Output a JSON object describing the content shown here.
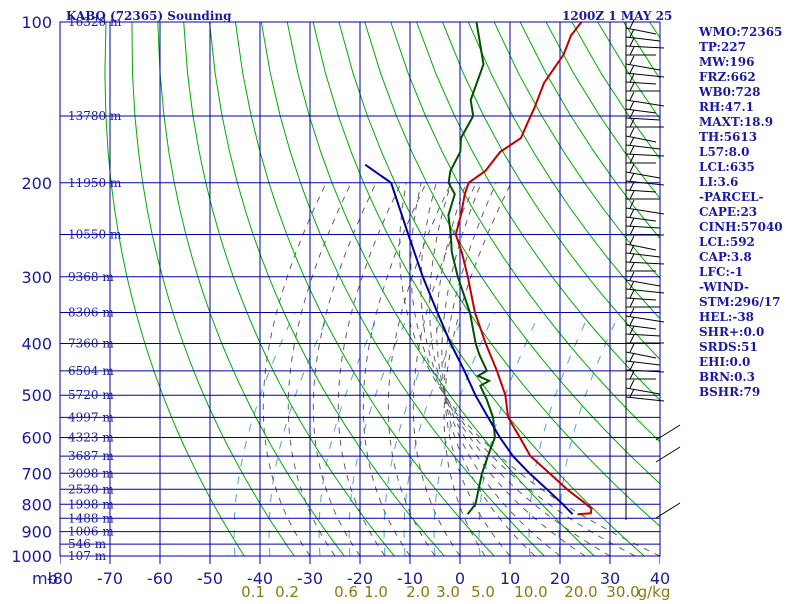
{
  "header": {
    "title": "KABQ (72365) Sounding",
    "time": "1200Z  1 MAY 25"
  },
  "indices": [
    "WMO:72365",
    "TP:227",
    "MW:196",
    "FRZ:662",
    "WB0:728",
    "RH:47.1",
    "MAXT:18.9",
    "TH:5613",
    "L57:8.0",
    "LCL:635",
    "LI:3.6",
    "-PARCEL-",
    "CAPE:23",
    "CINH:57040",
    "LCL:592",
    "CAP:3.8",
    "LFC:-1",
    "-WIND-",
    "STM:296/17",
    "HEL:-38",
    "SHR+:0.0",
    "SRDS:51",
    "EHI:0.0",
    "BRN:0.3",
    "BSHR:79"
  ],
  "colors": {
    "isobar": "#0000a0",
    "isotherm": "#0000a0",
    "dry_adiabat": "#00aa00",
    "moist_adiabat": "#606060",
    "mixing_ratio": "#4f9fe0",
    "temperature": "#c00000",
    "dewpoint": "#005000",
    "parcel": "#0000a0",
    "text": "#1a1aa0",
    "mixing_label": "#8a7a10",
    "wind": "#000000"
  },
  "chart_data": {
    "type": "line",
    "title": "KABQ (72365) Sounding",
    "xlabel": "",
    "ylabel": "mb",
    "xlim": [
      -80,
      40
    ],
    "ylim": [
      1000,
      100
    ],
    "y_scale": "log",
    "grid": true,
    "pressure_ticks": [
      100,
      200,
      300,
      400,
      500,
      600,
      700,
      800,
      900,
      1000
    ],
    "temperature_ticks": [
      "-80",
      "-70",
      "-60",
      "-50",
      "-40",
      "-30",
      "-20",
      "-10",
      "0",
      "10",
      "20",
      "30",
      "40"
    ],
    "mixing_ratio_labels": [
      "0.1",
      "0.2",
      "0.6",
      "1.0",
      "2.0",
      "3.0",
      "5.0",
      "10.0",
      "20.0",
      "30.0",
      "g/kg"
    ],
    "height_labels": [
      {
        "p": 100,
        "label": "16320 m"
      },
      {
        "p": 150,
        "label": "13780 m"
      },
      {
        "p": 200,
        "label": "11950 m"
      },
      {
        "p": 250,
        "label": "10550 m"
      },
      {
        "p": 300,
        "label": "9368 m"
      },
      {
        "p": 350,
        "label": "8306 m"
      },
      {
        "p": 400,
        "label": "7360 m"
      },
      {
        "p": 450,
        "label": "6504 m"
      },
      {
        "p": 500,
        "label": "5720 m"
      },
      {
        "p": 550,
        "label": "4997 m"
      },
      {
        "p": 600,
        "label": "4323 m"
      },
      {
        "p": 650,
        "label": "3687 m"
      },
      {
        "p": 700,
        "label": "3098 m"
      },
      {
        "p": 750,
        "label": "2530 m"
      },
      {
        "p": 800,
        "label": "1998 m"
      },
      {
        "p": 850,
        "label": "1488 m"
      },
      {
        "p": 900,
        "label": "1006 m"
      },
      {
        "p": 950,
        "label": "546 m"
      },
      {
        "p": 1000,
        "label": "107 m"
      }
    ],
    "series": [
      {
        "key": "temperature",
        "points": [
          [
            835,
            17.0
          ],
          [
            832,
            19.5
          ],
          [
            815,
            18.9
          ],
          [
            790,
            16.0
          ],
          [
            750,
            11.0
          ],
          [
            700,
            5.0
          ],
          [
            650,
            -1.5
          ],
          [
            600,
            -6.5
          ],
          [
            550,
            -12.0
          ],
          [
            500,
            -16.0
          ],
          [
            450,
            -21.5
          ],
          [
            400,
            -28.0
          ],
          [
            350,
            -35.0
          ],
          [
            300,
            -42.0
          ],
          [
            270,
            -47.0
          ],
          [
            250,
            -51.0
          ],
          [
            230,
            -53.0
          ],
          [
            210,
            -55.5
          ],
          [
            200,
            -56.5
          ],
          [
            190,
            -55.0
          ],
          [
            175,
            -55.0
          ],
          [
            165,
            -53.0
          ],
          [
            155,
            -54.0
          ],
          [
            145,
            -55.0
          ],
          [
            130,
            -57.0
          ],
          [
            115,
            -57.5
          ],
          [
            106,
            -59.0
          ],
          [
            100,
            -59.0
          ]
        ]
      },
      {
        "key": "dewpoint",
        "points": [
          [
            835,
            -5.0
          ],
          [
            800,
            -5.0
          ],
          [
            700,
            -8.5
          ],
          [
            650,
            -10.0
          ],
          [
            600,
            -11.5
          ],
          [
            550,
            -15.0
          ],
          [
            510,
            -19.0
          ],
          [
            480,
            -22.5
          ],
          [
            470,
            -21.5
          ],
          [
            460,
            -24.5
          ],
          [
            450,
            -23.5
          ],
          [
            420,
            -27.5
          ],
          [
            400,
            -30.0
          ],
          [
            350,
            -36.0
          ],
          [
            300,
            -44.0
          ],
          [
            270,
            -49.0
          ],
          [
            250,
            -52.0
          ],
          [
            230,
            -55.5
          ],
          [
            210,
            -57.5
          ],
          [
            200,
            -60.5
          ],
          [
            190,
            -62.0
          ],
          [
            175,
            -63.0
          ],
          [
            165,
            -65.0
          ],
          [
            150,
            -66.0
          ],
          [
            140,
            -69.0
          ],
          [
            120,
            -72.0
          ],
          [
            100,
            -80.0
          ]
        ]
      },
      {
        "key": "parcel",
        "points": [
          [
            835,
            16.0
          ],
          [
            800,
            12.5
          ],
          [
            750,
            7.0
          ],
          [
            700,
            1.0
          ],
          [
            650,
            -5.0
          ],
          [
            600,
            -10.5
          ],
          [
            550,
            -16.0
          ],
          [
            500,
            -22.0
          ],
          [
            450,
            -28.0
          ],
          [
            400,
            -35.0
          ],
          [
            350,
            -42.5
          ],
          [
            300,
            -51.0
          ],
          [
            250,
            -60.5
          ],
          [
            200,
            -72.0
          ],
          [
            185,
            -80.0
          ]
        ]
      }
    ]
  }
}
